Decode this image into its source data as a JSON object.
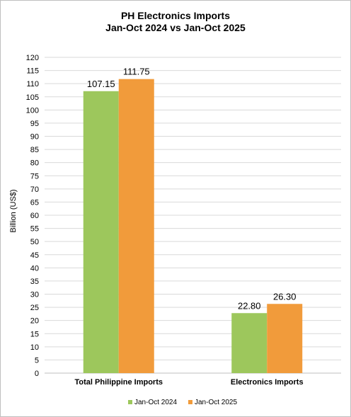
{
  "chart_data": {
    "type": "bar",
    "title_line1": "PH Electronics Imports",
    "title_line2": "Jan-Oct 2024 vs Jan-Oct 2025",
    "ylabel": "Billion (US$)",
    "xlabel": "",
    "ylim": [
      0,
      120
    ],
    "ytick_step": 5,
    "grid": "horizontal",
    "legend_position": "bottom",
    "categories": [
      "Total Philippine Imports",
      "Electronics Imports"
    ],
    "series": [
      {
        "name": "Jan-Oct 2024",
        "color": "#9dc75c",
        "values": [
          107.15,
          22.8
        ],
        "labels": [
          "107.15",
          "22.80"
        ]
      },
      {
        "name": "Jan-Oct 2025",
        "color": "#f19b3b",
        "values": [
          111.75,
          26.3
        ],
        "labels": [
          "111.75",
          "26.30"
        ]
      }
    ]
  }
}
